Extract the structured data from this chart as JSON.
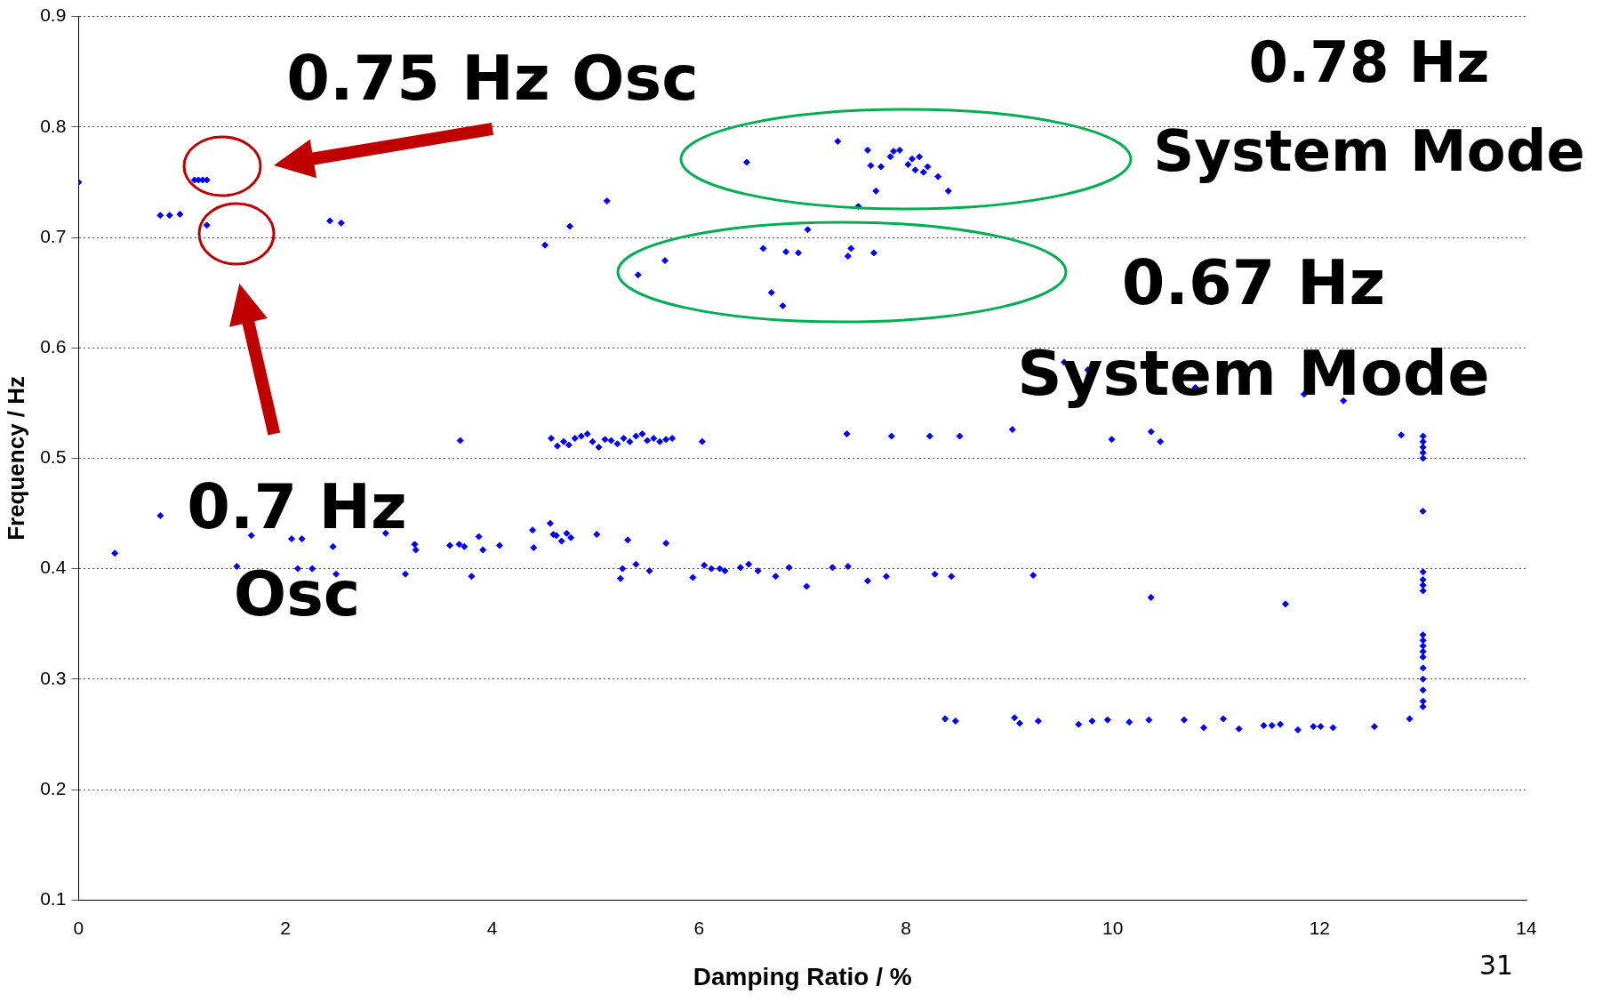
{
  "chart_data": {
    "type": "scatter",
    "xlabel": "Damping Ratio / %",
    "ylabel": "Frequency / Hz",
    "xlim": [
      0,
      14
    ],
    "xticks": [
      0,
      2,
      4,
      6,
      8,
      10,
      12,
      14
    ],
    "ylim": [
      0.1,
      0.9
    ],
    "yticks": [
      0.1,
      0.2,
      0.3,
      0.4,
      0.5,
      0.6,
      0.7,
      0.8,
      0.9
    ],
    "grid": "y",
    "marker": "diamond",
    "legend": false,
    "annotations": [
      "0.75 Hz Osc",
      "0.7 Hz\nOsc",
      "0.78 Hz\nSystem Mode",
      "0.67 Hz\nSystem Mode",
      "31"
    ],
    "series": [
      {
        "color": "#0000ff",
        "x": [
          0,
          1.12,
          1.16,
          1.2,
          1.24,
          1.24,
          0.79,
          0.88,
          0.98,
          2.43,
          2.54,
          4.51,
          4.75,
          5.11,
          5.41,
          5.67,
          6.46,
          6.62,
          6.7,
          6.81,
          6.84,
          6.96,
          7.05,
          7.34,
          7.44,
          7.47,
          7.54,
          7.63,
          7.66,
          7.69,
          7.71,
          7.76,
          7.85,
          7.88,
          7.94,
          8.02,
          8.06,
          8.09,
          8.13,
          8.17,
          8.21,
          8.31,
          8.41,
          3.69,
          4.57,
          4.63,
          4.69,
          4.74,
          4.8,
          4.86,
          4.92,
          4.97,
          5.03,
          5.09,
          5.15,
          5.21,
          5.27,
          5.33,
          5.39,
          5.45,
          5.5,
          5.56,
          5.62,
          5.68,
          5.74,
          6.03,
          7.43,
          7.86,
          8.23,
          8.52,
          9.03,
          9.99,
          10.37,
          10.46,
          12.79,
          13,
          13,
          13,
          13,
          13,
          13,
          9.53,
          9.76,
          10.8,
          11.85,
          12.23,
          13,
          13,
          13,
          13,
          13,
          13,
          13,
          13,
          13,
          13,
          13,
          13,
          13,
          13,
          12.87,
          0.35,
          0.79,
          1.53,
          1.67,
          2.06,
          2.16,
          2.12,
          2.26,
          2.46,
          2.49,
          2.97,
          3.16,
          3.25,
          3.26,
          3.59,
          3.68,
          3.73,
          3.8,
          3.87,
          3.91,
          4.07,
          4.39,
          4.4,
          4.56,
          4.59,
          4.62,
          4.67,
          4.72,
          4.76,
          5.01,
          5.26,
          5.24,
          5.31,
          5.39,
          5.52,
          5.68,
          5.94,
          6.05,
          6.12,
          6.2,
          6.25,
          6.4,
          6.48,
          6.57,
          6.74,
          6.87,
          7.04,
          7.29,
          7.44,
          7.63,
          7.81,
          8.28,
          8.44,
          9.23,
          10.37,
          11.67,
          8.38,
          8.48,
          9.05,
          9.1,
          9.28,
          9.67,
          9.8,
          9.95,
          10.16,
          10.35,
          10.69,
          10.88,
          11.07,
          11.22,
          11.46,
          11.54,
          11.62,
          11.79,
          11.94,
          12.01,
          12.13,
          12.53
        ],
        "values": [
          0.75,
          0.752,
          0.752,
          0.752,
          0.752,
          0.711,
          0.72,
          0.72,
          0.721,
          0.715,
          0.713,
          0.693,
          0.71,
          0.733,
          0.666,
          0.679,
          0.768,
          0.69,
          0.65,
          0.638,
          0.687,
          0.686,
          0.707,
          0.787,
          0.683,
          0.69,
          0.728,
          0.779,
          0.765,
          0.686,
          0.742,
          0.764,
          0.773,
          0.778,
          0.779,
          0.766,
          0.771,
          0.761,
          0.773,
          0.759,
          0.764,
          0.755,
          0.742,
          0.516,
          0.518,
          0.511,
          0.515,
          0.512,
          0.518,
          0.52,
          0.522,
          0.515,
          0.51,
          0.517,
          0.516,
          0.513,
          0.518,
          0.515,
          0.52,
          0.522,
          0.516,
          0.518,
          0.515,
          0.517,
          0.518,
          0.515,
          0.522,
          0.52,
          0.52,
          0.52,
          0.526,
          0.517,
          0.524,
          0.515,
          0.521,
          0.52,
          0.515,
          0.51,
          0.505,
          0.5,
          0.452,
          0.587,
          0.58,
          0.564,
          0.558,
          0.552,
          0.397,
          0.39,
          0.385,
          0.38,
          0.34,
          0.335,
          0.33,
          0.325,
          0.32,
          0.31,
          0.3,
          0.29,
          0.28,
          0.275,
          0.264,
          0.414,
          0.448,
          0.402,
          0.43,
          0.427,
          0.427,
          0.4,
          0.4,
          0.42,
          0.395,
          0.432,
          0.395,
          0.422,
          0.417,
          0.421,
          0.422,
          0.42,
          0.393,
          0.429,
          0.417,
          0.421,
          0.435,
          0.419,
          0.441,
          0.431,
          0.43,
          0.425,
          0.432,
          0.428,
          0.431,
          0.4,
          0.391,
          0.426,
          0.404,
          0.398,
          0.423,
          0.392,
          0.403,
          0.4,
          0.4,
          0.398,
          0.401,
          0.404,
          0.398,
          0.393,
          0.401,
          0.384,
          0.401,
          0.402,
          0.389,
          0.393,
          0.395,
          0.393,
          0.394,
          0.374,
          0.368,
          0.264,
          0.262,
          0.265,
          0.26,
          0.262,
          0.259,
          0.262,
          0.263,
          0.261,
          0.263,
          0.263,
          0.256,
          0.264,
          0.255,
          0.258,
          0.258,
          0.259,
          0.254,
          0.257,
          0.257,
          0.256,
          0.257
        ]
      }
    ]
  }
}
